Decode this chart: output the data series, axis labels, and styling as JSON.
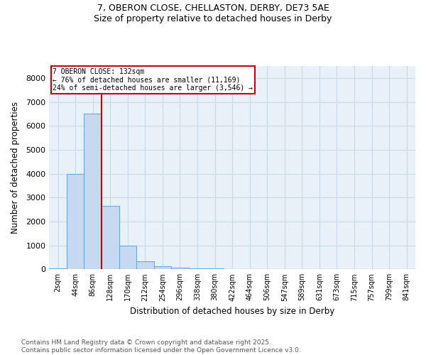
{
  "title_line1": "7, OBERON CLOSE, CHELLASTON, DERBY, DE73 5AE",
  "title_line2": "Size of property relative to detached houses in Derby",
  "xlabel": "Distribution of detached houses by size in Derby",
  "ylabel": "Number of detached properties",
  "bin_labels": [
    "2sqm",
    "44sqm",
    "86sqm",
    "128sqm",
    "170sqm",
    "212sqm",
    "254sqm",
    "296sqm",
    "338sqm",
    "380sqm",
    "422sqm",
    "464sqm",
    "506sqm",
    "547sqm",
    "589sqm",
    "631sqm",
    "673sqm",
    "715sqm",
    "757sqm",
    "799sqm",
    "841sqm"
  ],
  "bar_values": [
    50,
    4000,
    6500,
    2650,
    975,
    340,
    130,
    75,
    50,
    40,
    0,
    0,
    0,
    0,
    0,
    0,
    0,
    0,
    0,
    0,
    0
  ],
  "bar_color": "#c6d9f0",
  "bar_edge_color": "#6fa8dc",
  "property_line_x": 3.0,
  "annotation_text": "7 OBERON CLOSE: 132sqm\n← 76% of detached houses are smaller (11,169)\n24% of semi-detached houses are larger (3,546) →",
  "annotation_box_color": "#cc0000",
  "grid_color": "#c8d8e8",
  "background_color": "#e8f0f8",
  "ylim": [
    0,
    8500
  ],
  "yticks": [
    0,
    1000,
    2000,
    3000,
    4000,
    5000,
    6000,
    7000,
    8000
  ],
  "footnote": "Contains HM Land Registry data © Crown copyright and database right 2025.\nContains public sector information licensed under the Open Government Licence v3.0."
}
